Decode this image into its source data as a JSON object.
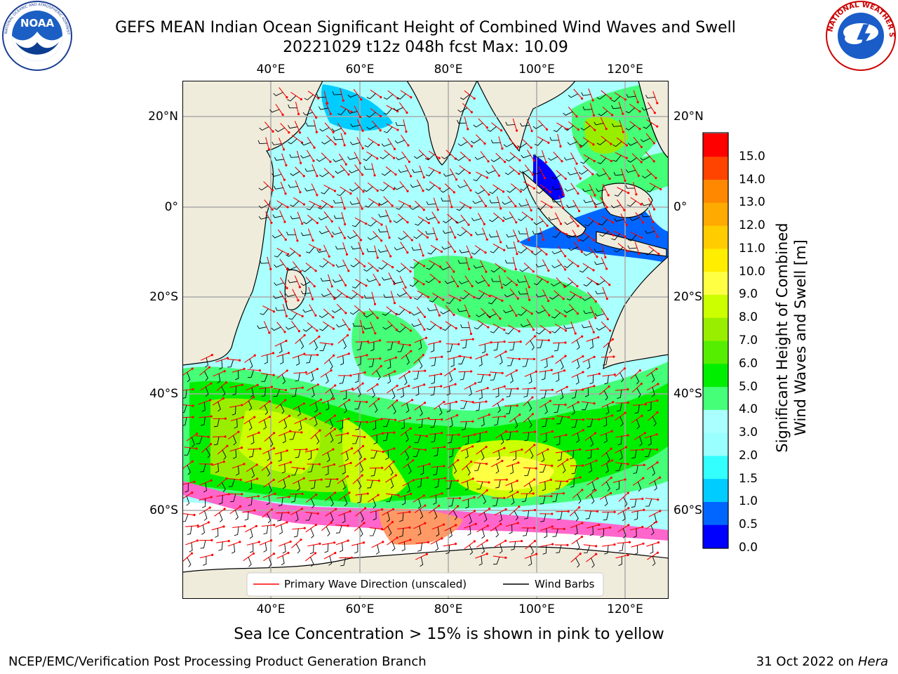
{
  "title": {
    "line1": "GEFS MEAN Indian Ocean Significant Height of Combined Wind Waves and Swell",
    "line2": "20221029 t12z 048h fcst   Max: 10.09"
  },
  "map": {
    "lon_ticks_top": [
      "40°E",
      "60°E",
      "80°E",
      "100°E",
      "120°E"
    ],
    "lon_ticks_bottom": [
      "40°E",
      "60°E",
      "80°E",
      "100°E",
      "120°E"
    ],
    "lat_ticks_left": [
      "20°N",
      "0°",
      "20°S",
      "40°S",
      "60°S"
    ],
    "lat_ticks_right": [
      "20°N",
      "0°",
      "20°S",
      "40°S",
      "60°S"
    ],
    "land_color": "#efecdc",
    "sea_ice_color": "#ff66cc"
  },
  "legend": {
    "wave_direction": "Primary Wave Direction (unscaled)",
    "wind_barbs": "Wind Barbs",
    "wave_direction_color": "#ff0000",
    "wind_barbs_color": "#000000"
  },
  "colorbar": {
    "label_line1": "Significant Height of Combined",
    "label_line2": "Wind Waves and Swell [m]",
    "ticks": [
      "0.0",
      "0.5",
      "1.0",
      "1.5",
      "2.0",
      "3.0",
      "4.0",
      "5.0",
      "6.0",
      "7.0",
      "8.0",
      "9.0",
      "10.0",
      "11.0",
      "12.0",
      "13.0",
      "14.0",
      "15.0"
    ],
    "colors": [
      "#0000ff",
      "#0066ff",
      "#00ccff",
      "#33ffff",
      "#99ffff",
      "#aaffff",
      "#44ff77",
      "#00ee00",
      "#55ee00",
      "#99ee00",
      "#ccff00",
      "#ffff44",
      "#ffee00",
      "#ffcc00",
      "#ffaa00",
      "#ff8800",
      "#ff4400",
      "#ff0000"
    ]
  },
  "caption": "Sea Ice Concentration > 15% is shown in pink to yellow",
  "footer": {
    "left": "NCEP/EMC/Verification Post Processing Product Generation Branch",
    "right_date": "31 Oct 2022 on ",
    "right_host": "Hera"
  },
  "logos": {
    "noaa_text": "NOAA",
    "noaa_ring_text": "NATIONAL OCEANIC AND ATMOSPHERIC ADMINISTRATION · U.S. DEPARTMENT OF COMMERCE",
    "nws_ring_text": "NATIONAL WEATHER SERVICE"
  }
}
